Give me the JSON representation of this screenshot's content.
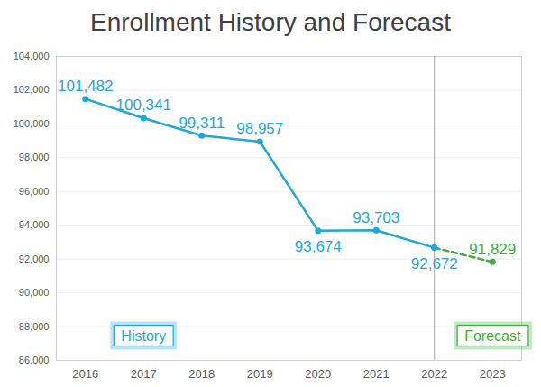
{
  "chart_data": {
    "type": "line",
    "title": "Enrollment History and Forecast",
    "x": [
      2016,
      2017,
      2018,
      2019,
      2020,
      2021,
      2022,
      2023
    ],
    "xlim": [
      2015.5,
      2023.5
    ],
    "xticks": [
      2016,
      2017,
      2018,
      2019,
      2020,
      2021,
      2022,
      2023
    ],
    "ylim": [
      86000,
      104000
    ],
    "yticks": [
      {
        "value": 86000,
        "label": "86,000"
      },
      {
        "value": 88000,
        "label": "88,000"
      },
      {
        "value": 90000,
        "label": "90,000"
      },
      {
        "value": 92000,
        "label": "92,000"
      },
      {
        "value": 94000,
        "label": "94,000"
      },
      {
        "value": 96000,
        "label": "96,000"
      },
      {
        "value": 98000,
        "label": "98,000"
      },
      {
        "value": 100000,
        "label": "100,000"
      },
      {
        "value": 102000,
        "label": "102,000"
      },
      {
        "value": 104000,
        "label": "104,000"
      }
    ],
    "grid": true,
    "data_labels": true,
    "vline": 2022,
    "series": [
      {
        "name": "History",
        "color": "#1ea7d8",
        "line_style": "solid",
        "marker": "circle",
        "values": [
          101482,
          100341,
          99311,
          98957,
          93674,
          93703,
          92672,
          null
        ],
        "value_labels": [
          "101,482",
          "100,341",
          "99,311",
          "98,957",
          "93,674",
          "93,703",
          "92,672",
          null
        ]
      },
      {
        "name": "Forecast",
        "color": "#3cae3c",
        "line_style": "dashed",
        "marker": "circle",
        "values": [
          null,
          null,
          null,
          null,
          null,
          null,
          92672,
          91829
        ],
        "value_labels": [
          null,
          null,
          null,
          null,
          null,
          null,
          null,
          "91,829"
        ]
      }
    ]
  }
}
